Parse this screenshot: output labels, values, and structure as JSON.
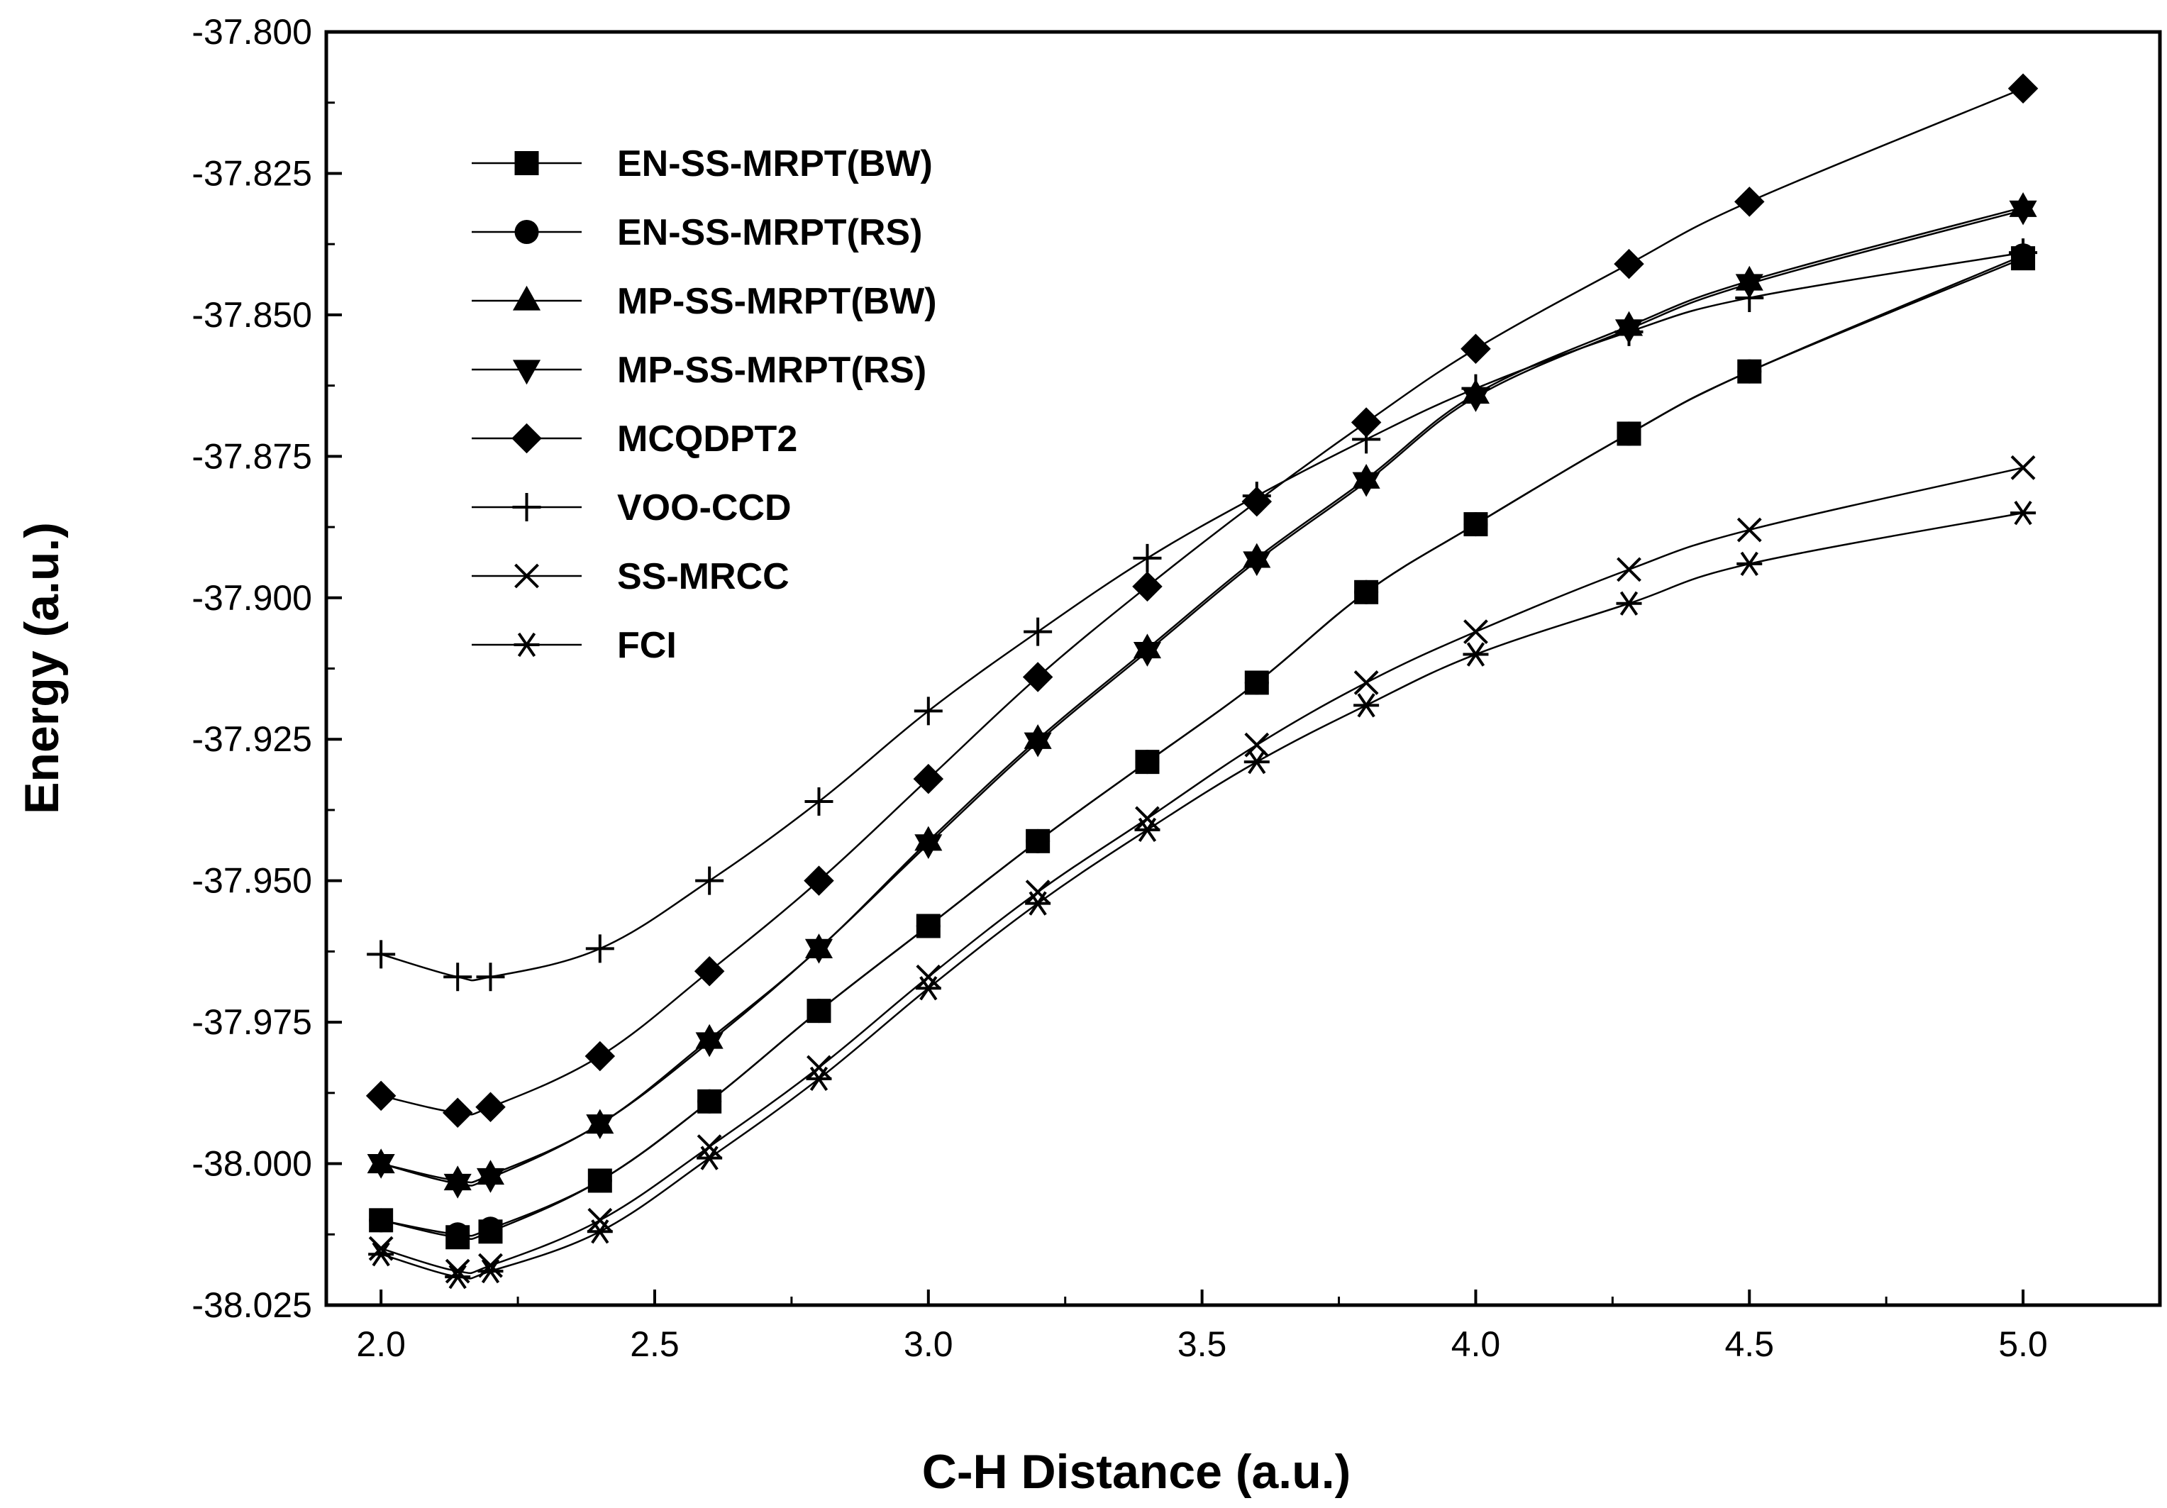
{
  "chart_data": {
    "type": "line",
    "xlabel": "C-H Distance (a.u.)",
    "ylabel": "Energy (a.u.)",
    "xlim": [
      1.9,
      5.25
    ],
    "ylim": [
      -38.025,
      -37.8
    ],
    "x_ticks": [
      "2.0",
      "2.5",
      "3.0",
      "3.5",
      "4.0",
      "4.5",
      "5.0"
    ],
    "y_ticks": [
      "-37.800",
      "-37.825",
      "-37.850",
      "-37.875",
      "-37.900",
      "-37.925",
      "-37.950",
      "-37.975",
      "-38.000",
      "-38.025"
    ],
    "legend_position": "top-left",
    "x": [
      2.0,
      2.14,
      2.2,
      2.4,
      2.6,
      2.8,
      3.0,
      3.2,
      3.4,
      3.6,
      3.8,
      4.0,
      4.28,
      4.5,
      5.0
    ],
    "series": [
      {
        "name": "EN-SS-MRPT(BW)",
        "marker": "square",
        "values": [
          -38.01,
          -38.013,
          -38.012,
          -38.003,
          -37.989,
          -37.973,
          -37.958,
          -37.943,
          -37.929,
          -37.915,
          -37.899,
          -37.887,
          -37.871,
          -37.86,
          -37.84
        ]
      },
      {
        "name": "EN-SS-MRPT(RS)",
        "marker": "circle",
        "values": [
          -38.01,
          -38.0125,
          -38.0115,
          -38.003,
          -37.989,
          -37.973,
          -37.958,
          -37.943,
          -37.929,
          -37.915,
          -37.899,
          -37.887,
          -37.871,
          -37.86,
          -37.8395
        ]
      },
      {
        "name": "MP-SS-MRPT(BW)",
        "marker": "triangle-up",
        "values": [
          -38.0,
          -38.003,
          -38.002,
          -37.993,
          -37.978,
          -37.962,
          -37.943,
          -37.925,
          -37.909,
          -37.893,
          -37.879,
          -37.864,
          -37.852,
          -37.844,
          -37.831
        ]
      },
      {
        "name": "MP-SS-MRPT(RS)",
        "marker": "triangle-down",
        "values": [
          -38.0,
          -38.0035,
          -38.0025,
          -37.993,
          -37.9785,
          -37.962,
          -37.9435,
          -37.9255,
          -37.9095,
          -37.8935,
          -37.8795,
          -37.8645,
          -37.8525,
          -37.8445,
          -37.8315
        ]
      },
      {
        "name": "MCQDPT2",
        "marker": "diamond",
        "values": [
          -37.988,
          -37.991,
          -37.99,
          -37.981,
          -37.966,
          -37.95,
          -37.932,
          -37.914,
          -37.898,
          -37.883,
          -37.869,
          -37.856,
          -37.841,
          -37.83,
          -37.81
        ]
      },
      {
        "name": "VOO-CCD",
        "marker": "plus",
        "values": [
          -37.963,
          -37.967,
          -37.967,
          -37.962,
          -37.95,
          -37.936,
          -37.92,
          -37.906,
          -37.893,
          -37.882,
          -37.872,
          -37.863,
          -37.853,
          -37.847,
          -37.839
        ]
      },
      {
        "name": "SS-MRCC",
        "marker": "cross",
        "values": [
          -38.015,
          -38.019,
          -38.018,
          -38.01,
          -37.997,
          -37.983,
          -37.967,
          -37.952,
          -37.939,
          -37.926,
          -37.915,
          -37.906,
          -37.895,
          -37.888,
          -37.877
        ]
      },
      {
        "name": "FCI",
        "marker": "asterisk",
        "values": [
          -38.016,
          -38.02,
          -38.019,
          -38.012,
          -37.999,
          -37.985,
          -37.969,
          -37.954,
          -37.941,
          -37.929,
          -37.919,
          -37.91,
          -37.901,
          -37.894,
          -37.885
        ]
      }
    ]
  }
}
